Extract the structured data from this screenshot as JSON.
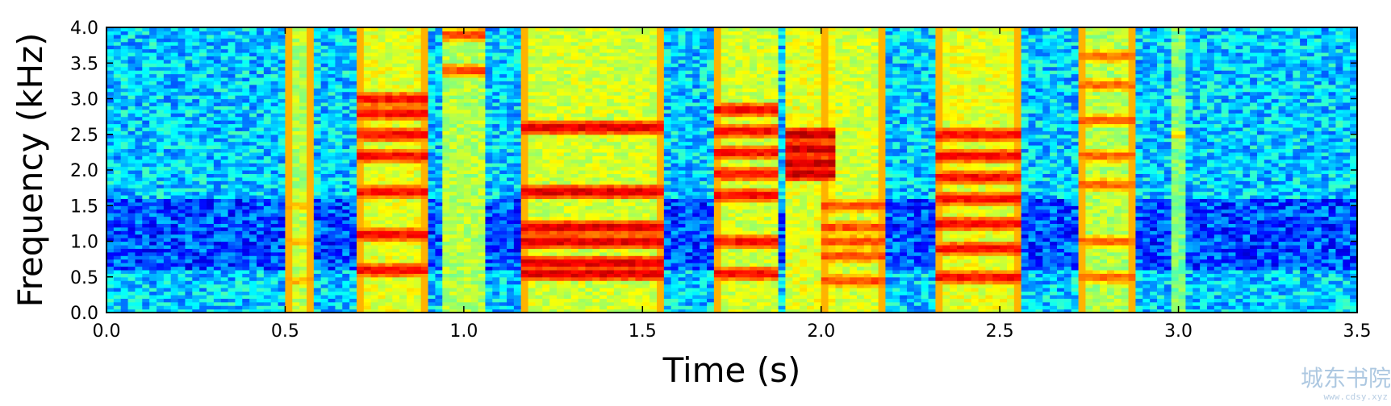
{
  "chart_data": {
    "type": "heatmap",
    "subtype": "spectrogram",
    "colormap": "jet",
    "xlabel": "Time (s)",
    "ylabel": "Frequency (kHz)",
    "xlim": [
      0.0,
      3.5
    ],
    "ylim": [
      0.0,
      4.0
    ],
    "xticks": [
      "0.0",
      "0.5",
      "1.0",
      "1.5",
      "2.0",
      "2.5",
      "3.0",
      "3.5"
    ],
    "yticks": [
      "0.0",
      "0.5",
      "1.0",
      "1.5",
      "2.0",
      "2.5",
      "3.0",
      "3.5",
      "4.0"
    ],
    "grid": false,
    "background_level": 0.33,
    "background_low_band": {
      "fmin": 0.6,
      "fmax": 1.6,
      "level": 0.2
    },
    "noise_amplitude": 0.12,
    "segments": [
      {
        "t0": 0.51,
        "t1": 0.58,
        "base": 0.55,
        "harmonics": [
          0.45,
          1.0,
          1.5
        ],
        "hlevel": 0.75,
        "edges": true
      },
      {
        "t0": 0.71,
        "t1": 0.9,
        "base": 0.6,
        "harmonics": [
          0.6,
          1.1,
          1.7,
          2.2,
          2.5,
          2.8,
          3.0
        ],
        "hlevel": 0.92,
        "edges": true
      },
      {
        "t0": 0.95,
        "t1": 1.05,
        "base": 0.55,
        "harmonics": [
          3.4,
          3.9
        ],
        "hlevel": 0.85,
        "edges": false
      },
      {
        "t0": 1.17,
        "t1": 1.55,
        "base": 0.58,
        "harmonics": [
          0.55,
          0.7,
          1.0,
          1.2,
          1.7,
          2.6
        ],
        "hlevel": 0.95,
        "edges": true
      },
      {
        "t0": 1.7,
        "t1": 1.89,
        "base": 0.58,
        "harmonics": [
          0.55,
          1.0,
          1.65,
          1.95,
          2.25,
          2.55,
          2.85
        ],
        "hlevel": 0.92,
        "edges": true
      },
      {
        "t0": 1.9,
        "t1": 2.05,
        "base": 0.6,
        "harmonics": [
          1.95,
          2.1,
          2.3,
          2.5
        ],
        "hlevel": 0.98,
        "edges": false
      },
      {
        "t0": 2.0,
        "t1": 2.18,
        "base": 0.58,
        "harmonics": [
          0.45,
          0.8,
          1.0,
          1.2,
          1.5
        ],
        "hlevel": 0.85,
        "edges": true
      },
      {
        "t0": 2.33,
        "t1": 2.56,
        "base": 0.6,
        "harmonics": [
          0.5,
          0.9,
          1.25,
          1.6,
          1.9,
          2.2,
          2.5
        ],
        "hlevel": 0.92,
        "edges": true
      },
      {
        "t0": 2.73,
        "t1": 2.88,
        "base": 0.55,
        "harmonics": [
          0.5,
          1.0,
          1.8,
          2.2,
          2.7,
          3.2,
          3.6
        ],
        "hlevel": 0.82,
        "edges": true
      },
      {
        "t0": 2.99,
        "t1": 3.01,
        "base": 0.5,
        "harmonics": [
          2.5
        ],
        "hlevel": 0.7,
        "edges": false
      }
    ]
  },
  "watermark": {
    "text": "城东书院",
    "subtext": "www.cdsy.xyz"
  }
}
